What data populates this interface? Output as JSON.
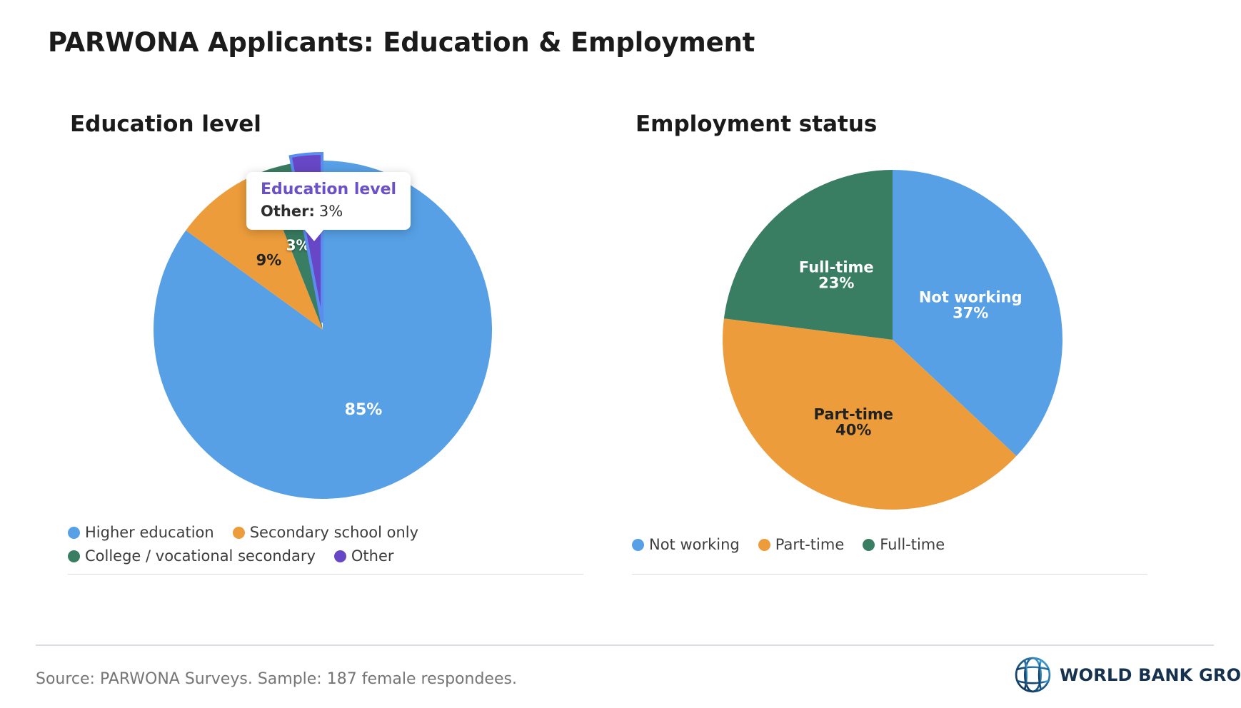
{
  "page": {
    "title": "PARWONA Applicants: Education & Employment"
  },
  "chart_data": [
    {
      "type": "pie",
      "title": "Education level",
      "legend_position": "bottom",
      "slices": [
        {
          "label": "Higher education",
          "value": 85,
          "display": "85%",
          "color": "#57a0e5",
          "label_color": "#ffffff",
          "label_r": 0.53,
          "label_size": 22,
          "show_label": true
        },
        {
          "label": "Secondary school only",
          "value": 9,
          "display": "9%",
          "color": "#ec9c3b",
          "label_color": "#222222",
          "label_r": 0.52,
          "label_size": 21,
          "show_label": true
        },
        {
          "label": "College / vocational secondary",
          "value": 3,
          "display": "3%",
          "color": "#397d62",
          "label_color": "#ffffff",
          "label_r": 0.52,
          "label_size": 20,
          "show_label": true,
          "label_shadow": true
        },
        {
          "label": "Other",
          "value": 3,
          "display": "3%",
          "color": "#6747c5",
          "label_color": "#ffffff",
          "label_r": 0.52,
          "label_size": 20,
          "show_label": false,
          "highlighted": true,
          "highlight_stroke": "#5b8cf0"
        }
      ],
      "tooltip": {
        "title": "Education level",
        "title_color": "#6b50c7",
        "label": "Other:",
        "value": "3%"
      }
    },
    {
      "type": "pie",
      "title": "Employment status",
      "legend_position": "bottom",
      "slices": [
        {
          "label": "Not working",
          "value": 37,
          "display": "37%",
          "color": "#57a0e5",
          "label_color": "#ffffff",
          "label_r": 0.5,
          "label_size": 21,
          "show_label": true,
          "two_line": true
        },
        {
          "label": "Part-time",
          "value": 40,
          "display": "40%",
          "color": "#ec9c3b",
          "label_color": "#222222",
          "label_r": 0.54,
          "label_size": 21,
          "show_label": true,
          "two_line": true
        },
        {
          "label": "Full-time",
          "value": 23,
          "display": "23%",
          "color": "#397d62",
          "label_color": "#ffffff",
          "label_r": 0.5,
          "label_size": 21,
          "show_label": true,
          "two_line": true
        }
      ]
    }
  ],
  "footer": {
    "source": "Source: PARWONA Surveys. Sample: 187 female respondees."
  },
  "branding": {
    "logo_icon": "world-bank-globe-icon",
    "name": "WORLD BANK GROUP"
  }
}
